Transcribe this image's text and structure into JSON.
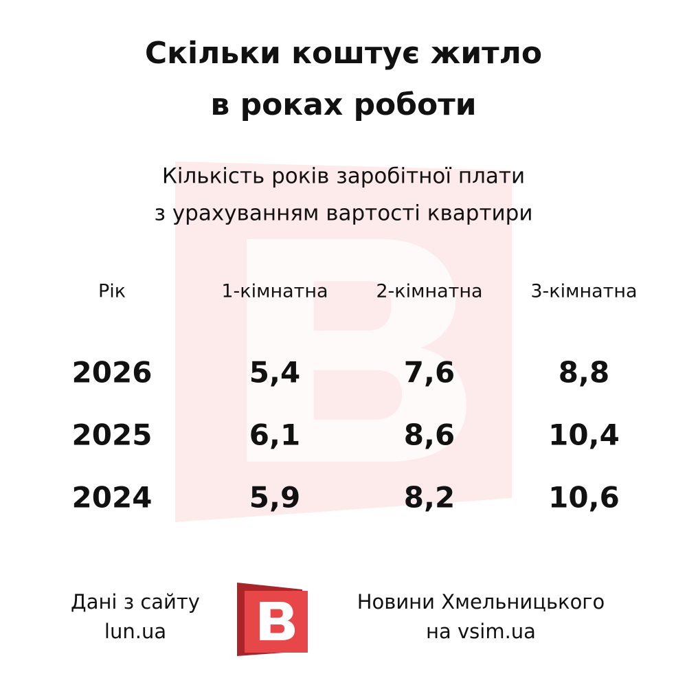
{
  "header": {
    "title": [
      "Скільки коштує житло",
      "в роках роботи"
    ],
    "subtitle": [
      "Кількість років заробітної плати",
      "з урахуванням вартості квартири"
    ]
  },
  "table": {
    "columns": [
      "Рік",
      "1-кімнатна",
      "2-кімнатна",
      "3-кімнатна"
    ],
    "rows": [
      [
        "2026",
        "5,4",
        "7,6",
        "8,8"
      ],
      [
        "2025",
        "6,1",
        "8,6",
        "10,4"
      ],
      [
        "2024",
        "5,9",
        "8,2",
        "10,6"
      ]
    ]
  },
  "footer": {
    "source": [
      "Дані з сайту",
      "lun.ua"
    ],
    "brand": [
      "Новини Хмельницького",
      "на vsim.ua"
    ]
  }
}
